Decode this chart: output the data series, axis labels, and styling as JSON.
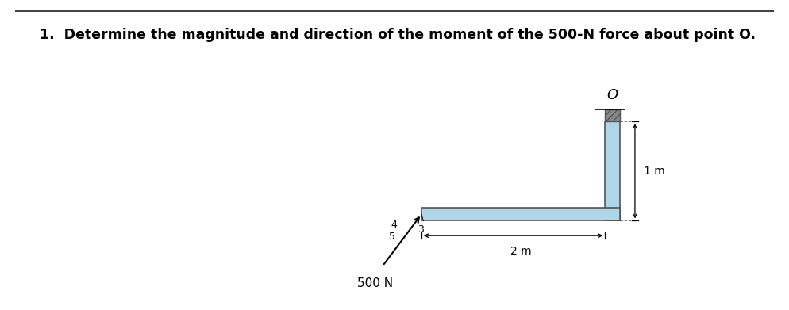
{
  "title": "1.  Determine the magnitude and direction of the moment of the 500-N force about point O.",
  "title_fontsize": 12.5,
  "title_fontweight": "bold",
  "bg_color": "#ffffff",
  "beam_fill": "#aed6e8",
  "beam_edge": "#555555",
  "point_O_label": "O",
  "dim_2m_label": "2 m",
  "dim_1m_label": "1 m",
  "force_label": "500 N",
  "force_triangle_labels": [
    "5",
    "3",
    "4"
  ],
  "line_color": "#444444",
  "hatch_color": "#555555"
}
